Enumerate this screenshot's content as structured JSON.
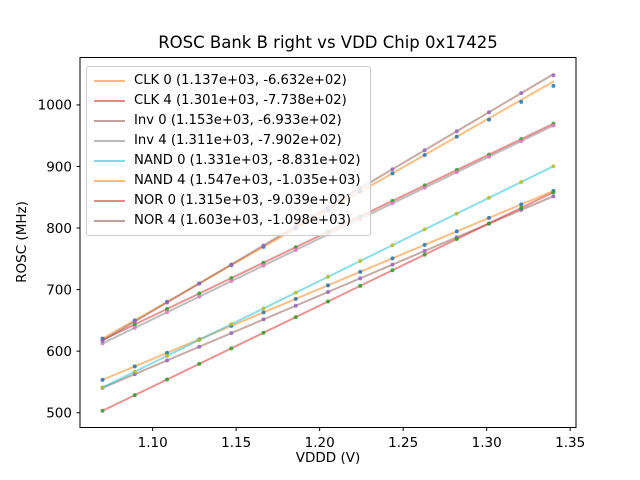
{
  "chart_data": {
    "type": "scatter",
    "title": "ROSC Bank B right vs VDD Chip 0x17425",
    "xlabel": "VDDD (V)",
    "ylabel": "ROSC (MHz)",
    "grid": false,
    "legend_position": "upper left",
    "xlim": [
      1.0565,
      1.3535
    ],
    "ylim": [
      476,
      1077
    ],
    "xticks": [
      {
        "v": 1.1,
        "label": "1.10"
      },
      {
        "v": 1.15,
        "label": "1.15"
      },
      {
        "v": 1.2,
        "label": "1.20"
      },
      {
        "v": 1.25,
        "label": "1.25"
      },
      {
        "v": 1.3,
        "label": "1.30"
      },
      {
        "v": 1.35,
        "label": "1.35"
      }
    ],
    "yticks": [
      {
        "v": 500,
        "label": "500"
      },
      {
        "v": 600,
        "label": "600"
      },
      {
        "v": 700,
        "label": "700"
      },
      {
        "v": 800,
        "label": "800"
      },
      {
        "v": 900,
        "label": "900"
      },
      {
        "v": 1000,
        "label": "1000"
      }
    ],
    "line_alpha": 0.5,
    "marker_alpha": 0.85,
    "x": [
      1.07,
      1.0893,
      1.1086,
      1.1279,
      1.1471,
      1.1664,
      1.1857,
      1.205,
      1.2243,
      1.2436,
      1.2629,
      1.2821,
      1.3014,
      1.3207,
      1.34
    ],
    "series": [
      {
        "name": "CLK 0",
        "label": "CLK 0 (1.137e+03, -6.632e+02)",
        "slope": 1137.0,
        "intercept": -663.2,
        "marker_color": "#1f77b4",
        "line_color": "#ff7f0e",
        "values": [
          553.4,
          575.3,
          597.3,
          619.2,
          641.1,
          663.0,
          684.9,
          706.9,
          728.8,
          750.8,
          772.7,
          794.6,
          816.5,
          838.4,
          860.4
        ]
      },
      {
        "name": "CLK 4",
        "label": "CLK 4 (1.301e+03, -7.738e+02)",
        "slope": 1301.0,
        "intercept": -773.8,
        "marker_color": "#2ca02c",
        "line_color": "#d62728",
        "values": [
          618.3,
          643.4,
          668.5,
          693.6,
          718.6,
          743.7,
          768.8,
          793.9,
          819.0,
          844.1,
          869.2,
          894.2,
          919.3,
          944.4,
          969.5
        ]
      },
      {
        "name": "Inv 0",
        "label": "Inv 0 (1.153e+03, -6.933e+02)",
        "slope": 1153.0,
        "intercept": -693.3,
        "marker_color": "#9467bd",
        "line_color": "#8c564b",
        "values": [
          540.4,
          562.7,
          584.9,
          607.2,
          629.3,
          651.6,
          673.8,
          696.1,
          718.3,
          740.6,
          762.8,
          785.0,
          807.2,
          829.5,
          851.7
        ]
      },
      {
        "name": "Inv 4",
        "label": "Inv 4 (1.311e+03, -7.902e+02)",
        "slope": 1311.0,
        "intercept": -790.2,
        "marker_color": "#e377c2",
        "line_color": "#7f7f7f",
        "values": [
          612.6,
          637.9,
          663.2,
          688.5,
          713.7,
          739.0,
          764.3,
          789.6,
          814.9,
          840.2,
          865.5,
          890.6,
          915.9,
          941.2,
          966.5
        ]
      },
      {
        "name": "NAND 0",
        "label": "NAND 0 (1.331e+03, -8.831e+02)",
        "slope": 1331.0,
        "intercept": -883.1,
        "marker_color": "#bcbd22",
        "line_color": "#17becf",
        "values": [
          541.1,
          566.8,
          592.4,
          618.1,
          643.7,
          669.4,
          695.1,
          720.8,
          746.4,
          772.1,
          797.8,
          823.4,
          849.1,
          874.8,
          900.4
        ]
      },
      {
        "name": "NAND 4",
        "label": "NAND 4 (1.547e+03, -1.035e+03)",
        "slope": 1547.0,
        "intercept": -1035.0,
        "marker_color": "#1f77b4",
        "line_color": "#ff7f0e",
        "values": [
          620.3,
          650.1,
          680.0,
          709.9,
          739.6,
          769.4,
          799.3,
          829.1,
          859.0,
          888.8,
          918.7,
          948.4,
          976.0,
          1005.0,
          1031.0
        ]
      },
      {
        "name": "NOR 0",
        "label": "NOR 0 (1.315e+03, -9.039e+02)",
        "slope": 1315.0,
        "intercept": -903.9,
        "marker_color": "#2ca02c",
        "line_color": "#d62728",
        "values": [
          503.2,
          528.5,
          553.9,
          579.3,
          604.5,
          629.9,
          655.3,
          680.7,
          706.1,
          731.4,
          756.8,
          782.1,
          807.4,
          832.8,
          858.2
        ]
      },
      {
        "name": "NOR 4",
        "label": "NOR 4 (1.603e+03, -1.098e+03)",
        "slope": 1603.0,
        "intercept": -1098.0,
        "marker_color": "#9467bd",
        "line_color": "#8c564b",
        "values": [
          617.2,
          648.1,
          679.1,
          710.0,
          740.8,
          771.7,
          802.7,
          833.6,
          864.6,
          895.5,
          926.4,
          957.2,
          988.1,
          1019.1,
          1048.0
        ]
      }
    ]
  }
}
